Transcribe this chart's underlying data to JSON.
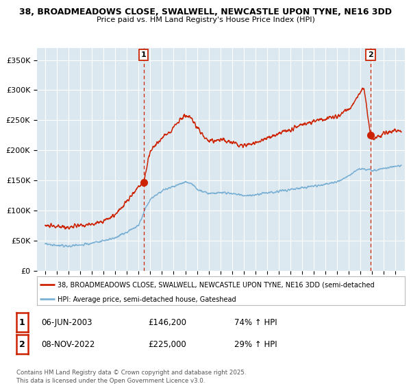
{
  "title1": "38, BROADMEADOWS CLOSE, SWALWELL, NEWCASTLE UPON TYNE, NE16 3DD",
  "title2": "Price paid vs. HM Land Registry's House Price Index (HPI)",
  "legend_line1": "38, BROADMEADOWS CLOSE, SWALWELL, NEWCASTLE UPON TYNE, NE16 3DD (semi-detached",
  "legend_line2": "HPI: Average price, semi-detached house, Gateshead",
  "annotation1_date": "06-JUN-2003",
  "annotation1_price": "£146,200",
  "annotation1_hpi": "74% ↑ HPI",
  "annotation2_date": "08-NOV-2022",
  "annotation2_price": "£225,000",
  "annotation2_hpi": "29% ↑ HPI",
  "footer": "Contains HM Land Registry data © Crown copyright and database right 2025.\nThis data is licensed under the Open Government Licence v3.0.",
  "red_color": "#cc2200",
  "blue_color": "#7ab0d4",
  "plot_bg": "#dce8f0",
  "vline_color": "#cc2200",
  "dot_color": "#cc2200",
  "ylim": [
    0,
    370000
  ],
  "yticks": [
    0,
    50000,
    100000,
    150000,
    200000,
    250000,
    300000,
    350000
  ],
  "sale1_year": 2003.44,
  "sale1_price": 146200,
  "sale2_year": 2022.86,
  "sale2_price": 225000,
  "red_noise_scale": 3500,
  "blue_noise_scale": 2000
}
